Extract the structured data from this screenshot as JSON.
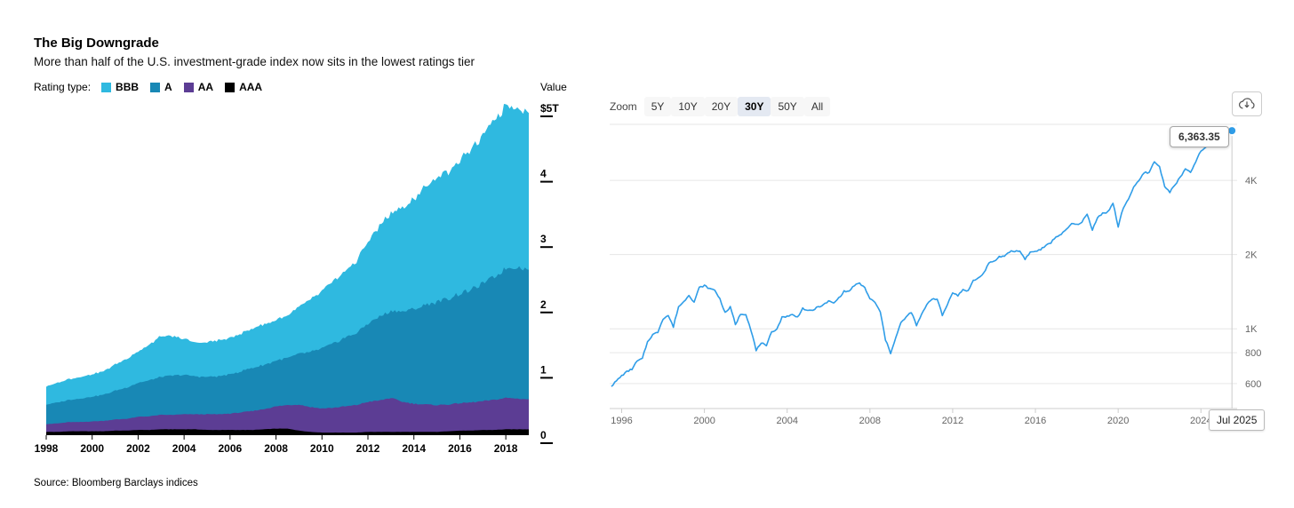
{
  "left_chart": {
    "title": "The Big Downgrade",
    "subtitle": "More than half of the U.S. investment-grade index now sits in the lowest ratings tier",
    "legend_label": "Rating type:",
    "value_axis_label": "Value",
    "source": "Source: Bloomberg Barclays indices"
  },
  "right_chart": {
    "zoom_label": "Zoom",
    "buttons": [
      {
        "label": "5Y",
        "active": false
      },
      {
        "label": "10Y",
        "active": false
      },
      {
        "label": "20Y",
        "active": false
      },
      {
        "label": "30Y",
        "active": true
      },
      {
        "label": "50Y",
        "active": false
      },
      {
        "label": "All",
        "active": false
      }
    ],
    "tooltip_value": "6,363.35",
    "tooltip_date": "Jul 2025",
    "export_icon": "download-cloud-icon"
  },
  "chart_data": [
    {
      "type": "area",
      "stacked": true,
      "title": "The Big Downgrade",
      "subtitle": "More than half of the U.S. investment-grade index now sits in the lowest ratings tier",
      "ylabel": "Value",
      "units": "trillion USD",
      "xlim": [
        1998,
        2019.0
      ],
      "ylim": [
        0,
        5
      ],
      "xticks": [
        1998,
        2000,
        2002,
        2004,
        2006,
        2008,
        2010,
        2012,
        2014,
        2016,
        2018
      ],
      "yticks": [
        {
          "v": 5,
          "label": "$5T"
        },
        {
          "v": 4,
          "label": "4"
        },
        {
          "v": 3,
          "label": "3"
        },
        {
          "v": 2,
          "label": "2"
        },
        {
          "v": 1,
          "label": "1"
        },
        {
          "v": 0,
          "label": "0"
        }
      ],
      "legend_order": [
        "BBB",
        "A",
        "AA",
        "AAA"
      ],
      "x": [
        1998,
        1998.5,
        1999,
        1999.5,
        2000,
        2000.5,
        2001,
        2001.5,
        2002,
        2002.5,
        2003,
        2003.5,
        2004,
        2004.5,
        2005,
        2005.5,
        2006,
        2006.5,
        2007,
        2007.5,
        2008,
        2008.5,
        2009,
        2009.5,
        2010,
        2010.5,
        2011,
        2011.5,
        2012,
        2012.5,
        2013,
        2013.5,
        2014,
        2014.5,
        2015,
        2015.5,
        2016,
        2016.5,
        2017,
        2017.5,
        2018,
        2018.5,
        2019
      ],
      "series": [
        {
          "name": "AAA",
          "color": "#000000",
          "values": [
            0.05,
            0.05,
            0.06,
            0.06,
            0.06,
            0.06,
            0.07,
            0.07,
            0.08,
            0.08,
            0.09,
            0.09,
            0.09,
            0.09,
            0.08,
            0.08,
            0.08,
            0.08,
            0.08,
            0.09,
            0.1,
            0.1,
            0.07,
            0.05,
            0.04,
            0.04,
            0.04,
            0.04,
            0.05,
            0.05,
            0.05,
            0.05,
            0.05,
            0.05,
            0.05,
            0.06,
            0.07,
            0.07,
            0.08,
            0.08,
            0.09,
            0.09,
            0.09
          ]
        },
        {
          "name": "AA",
          "color": "#5c3d94",
          "values": [
            0.12,
            0.13,
            0.14,
            0.14,
            0.15,
            0.16,
            0.17,
            0.18,
            0.2,
            0.21,
            0.22,
            0.22,
            0.23,
            0.23,
            0.24,
            0.24,
            0.25,
            0.27,
            0.29,
            0.31,
            0.34,
            0.36,
            0.4,
            0.38,
            0.37,
            0.38,
            0.4,
            0.42,
            0.46,
            0.48,
            0.52,
            0.46,
            0.43,
            0.42,
            0.41,
            0.41,
            0.42,
            0.43,
            0.44,
            0.46,
            0.48,
            0.47,
            0.46
          ]
        },
        {
          "name": "A",
          "color": "#1888b5",
          "values": [
            0.3,
            0.32,
            0.34,
            0.36,
            0.38,
            0.4,
            0.44,
            0.48,
            0.52,
            0.55,
            0.58,
            0.6,
            0.6,
            0.58,
            0.57,
            0.58,
            0.6,
            0.63,
            0.66,
            0.68,
            0.7,
            0.72,
            0.78,
            0.84,
            0.92,
            0.98,
            1.05,
            1.1,
            1.2,
            1.28,
            1.33,
            1.38,
            1.45,
            1.52,
            1.58,
            1.62,
            1.68,
            1.72,
            1.8,
            1.88,
            1.98,
            2.02,
            1.98
          ]
        },
        {
          "name": "BBB",
          "color": "#2fb9e0",
          "values": [
            0.28,
            0.3,
            0.32,
            0.33,
            0.34,
            0.36,
            0.4,
            0.44,
            0.48,
            0.55,
            0.62,
            0.6,
            0.55,
            0.52,
            0.53,
            0.55,
            0.56,
            0.58,
            0.6,
            0.62,
            0.62,
            0.65,
            0.72,
            0.8,
            0.88,
            0.95,
            1.02,
            1.1,
            1.25,
            1.38,
            1.5,
            1.58,
            1.68,
            1.8,
            1.9,
            1.95,
            2.05,
            2.15,
            2.25,
            2.38,
            2.5,
            2.45,
            2.4
          ]
        }
      ],
      "source": "Source: Bloomberg Barclays indices"
    },
    {
      "type": "line",
      "scale": "log",
      "color": "#2f9de8",
      "x_start": 1995.5,
      "x_step": 0.25,
      "xlim": [
        1995.42,
        2025.75
      ],
      "ylim": [
        475,
        6750
      ],
      "xticks": [
        1996,
        2000,
        2004,
        2008,
        2012,
        2016,
        2020,
        2024
      ],
      "yticks": [
        {
          "v": 4000,
          "label": "4K"
        },
        {
          "v": 2000,
          "label": "2K"
        },
        {
          "v": 1000,
          "label": "1K"
        },
        {
          "v": 800,
          "label": "800"
        },
        {
          "v": 600,
          "label": "600"
        }
      ],
      "values": [
        584,
        615,
        645,
        670,
        687,
        740,
        757,
        885,
        947,
        970,
        1100,
        1133,
        1017,
        1229,
        1286,
        1372,
        1282,
        1469,
        1498,
        1454,
        1436,
        1320,
        1160,
        1224,
        1040,
        1148,
        1147,
        989,
        815,
        880,
        848,
        974,
        996,
        1112,
        1126,
        1140,
        1114,
        1212,
        1180,
        1191,
        1228,
        1248,
        1295,
        1270,
        1335,
        1418,
        1420,
        1503,
        1526,
        1468,
        1322,
        1280,
        1166,
        903,
        797,
        919,
        1057,
        1115,
        1169,
        1030,
        1141,
        1257,
        1325,
        1320,
        1131,
        1257,
        1408,
        1362,
        1440,
        1426,
        1569,
        1606,
        1681,
        1848,
        1872,
        1960,
        1972,
        2058,
        2067,
        2063,
        1920,
        2043,
        2059,
        2098,
        2168,
        2238,
        2362,
        2423,
        2519,
        2673,
        2640,
        2718,
        2913,
        2506,
        2834,
        2941,
        2976,
        3230,
        2584,
        3100,
        3363,
        3756,
        3972,
        4297,
        4307,
        4766,
        4530,
        3785,
        3585,
        3839,
        4109,
        4450,
        4288,
        4769,
        5254,
        5460,
        5762,
        5881,
        5611,
        6204,
        6363.35
      ],
      "last_point": {
        "x_label": "Jul 2025",
        "value": 6363.35
      }
    }
  ]
}
